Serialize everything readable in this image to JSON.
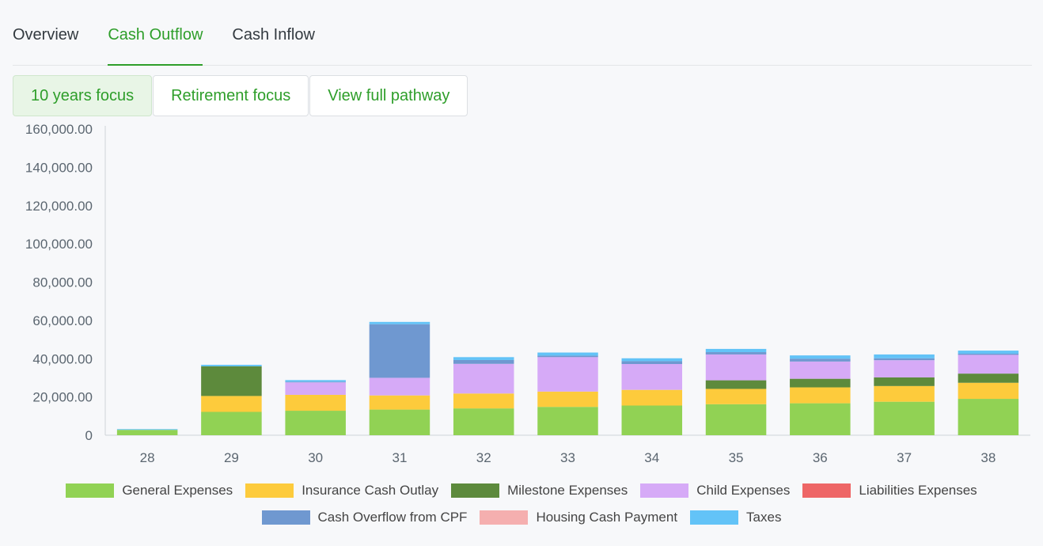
{
  "tabs": [
    {
      "label": "Overview",
      "active": false
    },
    {
      "label": "Cash Outflow",
      "active": true
    },
    {
      "label": "Cash Inflow",
      "active": false
    }
  ],
  "focus_buttons": [
    {
      "label": "10 years focus",
      "selected": true
    },
    {
      "label": "Retirement focus",
      "selected": false
    },
    {
      "label": "View full pathway",
      "selected": false
    }
  ],
  "colors": {
    "accent": "#2e9e2a",
    "axis_text": "#5b6670"
  },
  "chart_data": {
    "type": "bar",
    "stacked": true,
    "title": "",
    "xlabel": "",
    "ylabel": "",
    "ylim": [
      0,
      160000
    ],
    "yticks": [
      "0",
      "20,000.00",
      "40,000.00",
      "60,000.00",
      "80,000.00",
      "100,000.00",
      "120,000.00",
      "140,000.00",
      "160,000.00"
    ],
    "ytick_values": [
      0,
      20000,
      40000,
      60000,
      80000,
      100000,
      120000,
      140000,
      160000
    ],
    "categories": [
      "28",
      "29",
      "30",
      "31",
      "32",
      "33",
      "34",
      "35",
      "36",
      "37",
      "38"
    ],
    "legend_position": "bottom",
    "series": [
      {
        "name": "General Expenses",
        "color": "#91d254",
        "values": [
          2800,
          12200,
          12800,
          13400,
          14000,
          14800,
          15500,
          16200,
          16700,
          17500,
          19000
        ]
      },
      {
        "name": "Insurance Cash Outlay",
        "color": "#fdcb3c",
        "values": [
          0,
          8300,
          8300,
          7400,
          7800,
          8000,
          8200,
          8000,
          8300,
          8200,
          8400
        ]
      },
      {
        "name": "Milestone Expenses",
        "color": "#5d8a3c",
        "values": [
          0,
          15500,
          0,
          0,
          0,
          0,
          0,
          4500,
          4500,
          4500,
          4800
        ]
      },
      {
        "name": "Child Expenses",
        "color": "#d6aaf7",
        "values": [
          0,
          0,
          6500,
          9200,
          15500,
          18000,
          13500,
          13500,
          9000,
          9000,
          9800
        ]
      },
      {
        "name": "Liabilities Expenses",
        "color": "#ee6666",
        "values": [
          0,
          0,
          0,
          0,
          0,
          0,
          0,
          0,
          0,
          0,
          0
        ]
      },
      {
        "name": "Cash Overflow from CPF",
        "color": "#6f98d0",
        "values": [
          0,
          0,
          400,
          28000,
          2000,
          800,
          1500,
          1200,
          1500,
          1000,
          600
        ]
      },
      {
        "name": "Housing Cash Payment",
        "color": "#f5afaf",
        "values": [
          0,
          0,
          0,
          0,
          0,
          0,
          0,
          0,
          0,
          0,
          0
        ]
      },
      {
        "name": "Taxes",
        "color": "#63c3f7",
        "values": [
          400,
          800,
          800,
          1200,
          1500,
          1600,
          1500,
          1700,
          1700,
          2000,
          1600
        ]
      }
    ]
  }
}
